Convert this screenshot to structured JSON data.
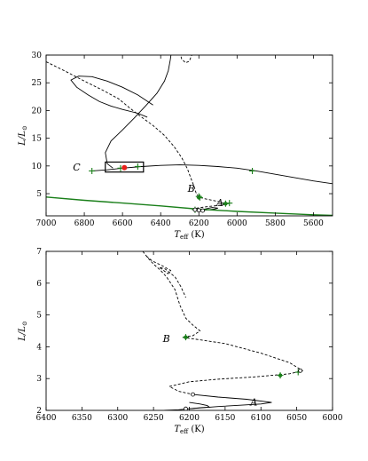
{
  "chart_data": [
    {
      "type": "line",
      "panel": "top",
      "xlabel_main": "T",
      "xlabel_sub": "eff",
      "xlabel_unit": " (K)",
      "ylabel_main": "L/L",
      "ylabel_sub": "⊙",
      "xlim": [
        7000,
        5500
      ],
      "ylim": [
        1,
        30
      ],
      "x_ticks": [
        7000,
        6800,
        6600,
        6400,
        6200,
        6000,
        5800,
        5600
      ],
      "y_ticks": [
        5,
        10,
        15,
        20,
        25,
        30
      ],
      "grid": false,
      "series": [
        {
          "style": "solid",
          "color": "#000000",
          "points": [
            [
              6440,
              21
            ],
            [
              6520,
              22.8
            ],
            [
              6600,
              24.2
            ],
            [
              6680,
              25.3
            ],
            [
              6760,
              26.1
            ],
            [
              6830,
              26.2
            ],
            [
              6870,
              25.5
            ],
            [
              6840,
              24.2
            ],
            [
              6780,
              22.8
            ],
            [
              6720,
              21.6
            ],
            [
              6660,
              20.8
            ],
            [
              6600,
              20.2
            ],
            [
              6520,
              19.5
            ],
            [
              6470,
              18.8
            ]
          ]
        },
        {
          "style": "dashed",
          "color": "#000000",
          "points": [
            [
              7000,
              28.8
            ],
            [
              6900,
              27.1
            ],
            [
              6800,
              25.3
            ],
            [
              6700,
              23.6
            ],
            [
              6620,
              22.1
            ],
            [
              6560,
              20.4
            ],
            [
              6500,
              18.8
            ],
            [
              6440,
              17.3
            ],
            [
              6380,
              15.5
            ],
            [
              6330,
              13.5
            ],
            [
              6290,
              11.5
            ],
            [
              6260,
              9.5
            ],
            [
              6240,
              7.6
            ],
            [
              6225,
              6.3
            ],
            [
              6215,
              5.2
            ],
            [
              6205,
              4.6
            ],
            [
              6195,
              4.3
            ],
            [
              6180,
              4.2
            ],
            [
              6170,
              4.1
            ],
            [
              6100,
              3.6
            ],
            [
              6060,
              3.2
            ],
            [
              6080,
              2.9
            ],
            [
              6150,
              2.7
            ],
            [
              6210,
              2.4
            ],
            [
              6220,
              2.1
            ]
          ]
        },
        {
          "style": "solid",
          "color": "#000000",
          "points": [
            [
              6220,
              2.1
            ],
            [
              6190,
              2.05
            ],
            [
              6160,
              2.3
            ],
            [
              6130,
              2.5
            ],
            [
              6100,
              2.4
            ],
            [
              6120,
              2.2
            ],
            [
              6180,
              2.0
            ],
            [
              6210,
              1.9
            ]
          ]
        },
        {
          "style": "solid",
          "color": "#000000",
          "points": [
            [
              6650,
              9.6
            ],
            [
              6680,
              10.4
            ],
            [
              6690,
              12.4
            ],
            [
              6660,
              14.5
            ],
            [
              6600,
              16.5
            ],
            [
              6540,
              18.6
            ],
            [
              6480,
              20.8
            ],
            [
              6420,
              23.1
            ],
            [
              6380,
              25.3
            ],
            [
              6360,
              27.2
            ],
            [
              6350,
              29.1
            ],
            [
              6345,
              30.2
            ]
          ]
        },
        {
          "style": "dashed",
          "color": "#000000",
          "points": [
            [
              6300,
              30.5
            ],
            [
              6290,
              29.3
            ],
            [
              6270,
              28.6
            ],
            [
              6250,
              28.9
            ],
            [
              6240,
              29.8
            ],
            [
              6230,
              30.5
            ]
          ]
        },
        {
          "style": "solid",
          "color": "#000000",
          "points": [
            [
              6760,
              9.1
            ],
            [
              6680,
              9.3
            ],
            [
              6600,
              9.6
            ],
            [
              6500,
              9.9
            ],
            [
              6400,
              10.1
            ],
            [
              6300,
              10.2
            ],
            [
              6200,
              10.1
            ],
            [
              6100,
              9.9
            ],
            [
              6000,
              9.6
            ],
            [
              5900,
              9.1
            ],
            [
              5800,
              8.5
            ],
            [
              5700,
              7.9
            ],
            [
              5600,
              7.3
            ],
            [
              5500,
              6.8
            ]
          ]
        },
        {
          "style": "solid",
          "color": "#1a7f1a",
          "points": [
            [
              7000,
              4.4
            ],
            [
              6800,
              3.8
            ],
            [
              6600,
              3.3
            ],
            [
              6400,
              2.8
            ],
            [
              6200,
              2.2
            ],
            [
              6000,
              1.8
            ],
            [
              5800,
              1.5
            ],
            [
              5600,
              1.2
            ],
            [
              5500,
              1.1
            ]
          ]
        }
      ],
      "green_plus_markers": [
        [
          6760,
          9.1
        ],
        [
          6610,
          9.6
        ],
        [
          6520,
          9.9
        ],
        [
          5920,
          9.1
        ],
        [
          6200,
          4.5
        ],
        [
          6195,
          4.3
        ],
        [
          6060,
          3.2
        ],
        [
          6040,
          3.3
        ],
        [
          6220,
          2.1
        ]
      ],
      "open_circles": [
        [
          6220,
          2.1
        ],
        [
          6200,
          2.0
        ],
        [
          6180,
          1.95
        ]
      ],
      "green_dots": [
        [
          6060,
          3.2
        ],
        [
          6200,
          4.3
        ]
      ],
      "red_dots": [
        [
          6590,
          9.7
        ]
      ],
      "box": {
        "x0": 6690,
        "x1": 6490,
        "y0": 8.9,
        "y1": 10.7
      },
      "annotations": [
        {
          "text": "C",
          "x": 6840,
          "y": 9.2
        },
        {
          "text": "B",
          "x": 6240,
          "y": 5.3
        },
        {
          "text": "A",
          "x": 6090,
          "y": 2.8
        }
      ]
    },
    {
      "type": "line",
      "panel": "bottom",
      "xlabel_main": "T",
      "xlabel_sub": "eff",
      "xlabel_unit": " (K)",
      "ylabel_main": "L/L",
      "ylabel_sub": "⊙",
      "xlim": [
        6400,
        6000
      ],
      "ylim": [
        2,
        7
      ],
      "x_ticks": [
        6400,
        6350,
        6300,
        6250,
        6200,
        6150,
        6100,
        6050,
        6000
      ],
      "y_ticks": [
        2,
        3,
        4,
        5,
        6,
        7
      ],
      "grid": false,
      "series": [
        {
          "style": "dashed",
          "color": "#000000",
          "points": [
            [
              6265,
              7.0
            ],
            [
              6258,
              6.8
            ],
            [
              6250,
              6.6
            ],
            [
              6240,
              6.4
            ],
            [
              6232,
              6.2
            ],
            [
              6226,
              6.0
            ],
            [
              6220,
              5.8
            ],
            [
              6213,
              5.3
            ],
            [
              6205,
              4.9
            ],
            [
              6196,
              4.7
            ],
            [
              6185,
              4.5
            ],
            [
              6195,
              4.35
            ],
            [
              6210,
              4.3
            ],
            [
              6195,
              4.25
            ],
            [
              6150,
              4.1
            ],
            [
              6100,
              3.8
            ],
            [
              6060,
              3.5
            ],
            [
              6042,
              3.25
            ],
            [
              6060,
              3.15
            ],
            [
              6110,
              3.05
            ],
            [
              6160,
              2.98
            ],
            [
              6200,
              2.9
            ],
            [
              6228,
              2.75
            ],
            [
              6215,
              2.6
            ],
            [
              6195,
              2.5
            ]
          ]
        },
        {
          "style": "dashed",
          "color": "#000000",
          "points": [
            [
              6260,
              6.85
            ],
            [
              6252,
              6.7
            ],
            [
              6238,
              6.55
            ],
            [
              6226,
              6.4
            ],
            [
              6230,
              6.3
            ],
            [
              6242,
              6.5
            ],
            [
              6234,
              6.45
            ],
            [
              6220,
              6.2
            ],
            [
              6212,
              5.9
            ],
            [
              6205,
              5.55
            ]
          ]
        },
        {
          "style": "solid",
          "color": "#000000",
          "points": [
            [
              6195,
              2.5
            ],
            [
              6160,
              2.42
            ],
            [
              6120,
              2.35
            ],
            [
              6085,
              2.25
            ],
            [
              6100,
              2.2
            ],
            [
              6160,
              2.12
            ],
            [
              6200,
              2.05
            ],
            [
              6215,
              2.02
            ],
            [
              6235,
              2.0
            ]
          ]
        },
        {
          "style": "solid",
          "color": "#000000",
          "points": [
            [
              6200,
              2.05
            ],
            [
              6182,
              2.09
            ],
            [
              6172,
              2.1
            ],
            [
              6175,
              2.15
            ],
            [
              6185,
              2.2
            ],
            [
              6200,
              2.25
            ]
          ]
        }
      ],
      "green_plus_markers": [
        [
          6205,
          4.3
        ],
        [
          6073,
          3.1
        ],
        [
          6048,
          3.2
        ]
      ],
      "open_circles": [
        [
          6195,
          2.5
        ],
        [
          6045,
          3.25
        ],
        [
          6205,
          2.05
        ]
      ],
      "green_dots": [
        [
          6205,
          4.3
        ],
        [
          6073,
          3.1
        ]
      ],
      "red_dots": [],
      "annotations": [
        {
          "text": "B",
          "x": 6232,
          "y": 4.15
        },
        {
          "text": "A",
          "x": 6110,
          "y": 2.15
        }
      ]
    }
  ]
}
